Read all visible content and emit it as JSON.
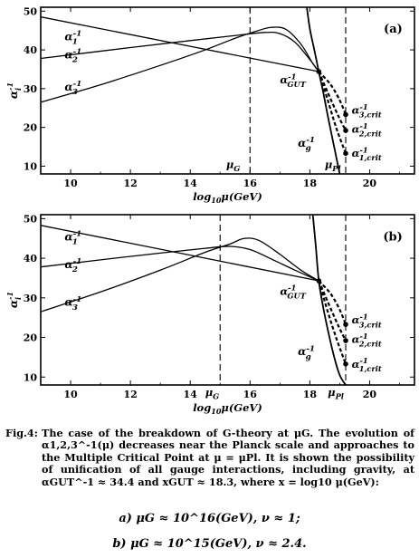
{
  "chart_data": [
    {
      "type": "line",
      "panel_label": "(a)",
      "xlabel": "log10μ(GeV)",
      "ylabel": "α_i^-1",
      "xlim": [
        9,
        21.5
      ],
      "ylim": [
        8,
        51
      ],
      "xticks": [
        10,
        12,
        14,
        16,
        18,
        20
      ],
      "yticks": [
        10,
        20,
        30,
        40,
        50
      ],
      "grid": false,
      "series": [
        {
          "name": "α1^-1",
          "x": [
            9,
            18.3
          ],
          "y": [
            48.5,
            34.4
          ]
        },
        {
          "name": "α2^-1",
          "x": [
            9,
            12,
            14,
            15.5,
            16.5,
            17,
            17.5,
            18,
            18.3
          ],
          "y": [
            37.8,
            40.6,
            42.4,
            43.7,
            44.5,
            44.2,
            42.0,
            37.5,
            34.4
          ]
        },
        {
          "name": "α3^-1",
          "x": [
            9,
            11,
            13,
            14.5,
            15.5,
            16.2,
            16.7,
            17.2,
            17.7,
            18.1,
            18.3
          ],
          "y": [
            26.5,
            31.0,
            36.0,
            40.0,
            43.0,
            44.8,
            45.8,
            45.3,
            41.5,
            36.5,
            34.4
          ]
        },
        {
          "name": "αg^-1",
          "x": [
            17.9,
            18.0,
            18.15,
            18.3,
            18.45,
            18.6,
            18.8,
            19.0
          ],
          "y": [
            51,
            45.5,
            40.0,
            34.4,
            29.0,
            23.0,
            15.5,
            8
          ]
        }
      ],
      "dashed_branches": [
        {
          "name": "α3,crit^-1",
          "x": [
            18.3,
            18.7,
            19.0,
            19.2
          ],
          "y": [
            34.4,
            31.0,
            27.0,
            23.3
          ]
        },
        {
          "name": "α2,crit^-1",
          "x": [
            18.3,
            18.6,
            18.95,
            19.2
          ],
          "y": [
            34.4,
            29.0,
            23.0,
            19.2
          ]
        },
        {
          "name": "α1,crit^-1",
          "x": [
            18.3,
            18.6,
            18.9,
            19.2
          ],
          "y": [
            34.4,
            27.0,
            19.5,
            13.3
          ]
        }
      ],
      "vertical_lines": [
        {
          "name": "μG",
          "x": 16
        },
        {
          "name": "μPl",
          "x": 19.2
        }
      ],
      "labels": {
        "a1": "α1^-1",
        "a2": "α2^-1",
        "a3": "α3^-1",
        "agut": "αGUT^-1",
        "ag": "αg^-1",
        "a3crit": "α3,crit^-1",
        "a2crit": "α2,crit^-1",
        "a1crit": "α1,crit^-1",
        "muG": "μG",
        "muPl": "μPl"
      }
    },
    {
      "type": "line",
      "panel_label": "(b)",
      "xlabel": "log10μ(GeV)",
      "ylabel": "α_i^-1",
      "xlim": [
        9,
        21.5
      ],
      "ylim": [
        8,
        51
      ],
      "xticks": [
        10,
        12,
        14,
        16,
        18,
        20
      ],
      "yticks": [
        10,
        20,
        30,
        40,
        50
      ],
      "grid": false,
      "series": [
        {
          "name": "α1^-1",
          "x": [
            9,
            18.3
          ],
          "y": [
            48.3,
            34.3
          ]
        },
        {
          "name": "α2^-1",
          "x": [
            9,
            11,
            13,
            14.5,
            15.3,
            16,
            16.8,
            17.5,
            18.3
          ],
          "y": [
            37.8,
            39.6,
            41.3,
            42.5,
            43.0,
            42.2,
            39.5,
            37.0,
            34.3
          ]
        },
        {
          "name": "α3^-1",
          "x": [
            9,
            11,
            13,
            14.5,
            15.3,
            15.8,
            16.3,
            17,
            17.7,
            18.3
          ],
          "y": [
            26.5,
            31.5,
            37.0,
            41.5,
            43.5,
            45.0,
            44.5,
            41.0,
            37.0,
            34.3
          ]
        },
        {
          "name": "αg^-1",
          "x": [
            18.1,
            18.2,
            18.3,
            18.45,
            18.6,
            18.8,
            19.0,
            19.2
          ],
          "y": [
            51,
            43.0,
            34.3,
            27.5,
            22.0,
            15.5,
            10.5,
            8
          ]
        }
      ],
      "dashed_branches": [
        {
          "name": "α3,crit^-1",
          "x": [
            18.3,
            18.7,
            19.0,
            19.2
          ],
          "y": [
            34.3,
            31.0,
            27.0,
            23.3
          ]
        },
        {
          "name": "α2,crit^-1",
          "x": [
            18.3,
            18.6,
            18.95,
            19.2
          ],
          "y": [
            34.3,
            29.0,
            23.0,
            19.2
          ]
        },
        {
          "name": "α1,crit^-1",
          "x": [
            18.3,
            18.6,
            18.9,
            19.2
          ],
          "y": [
            34.3,
            26.5,
            19.5,
            13.3
          ]
        }
      ],
      "vertical_lines": [
        {
          "name": "μG",
          "x": 15
        },
        {
          "name": "μPl",
          "x": 19.2
        }
      ],
      "labels": {
        "a1": "α1^-1",
        "a2": "α2^-1",
        "a3": "α3^-1",
        "agut": "αGUT^-1",
        "ag": "αg^-1",
        "a3crit": "α3,crit^-1",
        "a2crit": "α2,crit^-1",
        "a1crit": "α1,crit^-1",
        "muG": "μG",
        "muPl": "μPl"
      }
    }
  ],
  "caption": {
    "label": "Fig.4:",
    "text": "The case of the breakdown of G-theory at μG. The evolution of α1,2,3^-1(μ) decreases near the Planck scale and approaches to the Multiple Critical Point at μ = μPl. It is shown the possibility of unification of all gauge interactions, including gravity, at αGUT^-1 ≈ 34.4 and xGUT ≈ 18.3, where x = log10 μ(GeV):",
    "case_a": "a)  μG ≈ 10^16(GeV),  ν ≈ 1;",
    "case_b": "b)  μG ≈ 10^15(GeV),  ν ≈ 2.4."
  }
}
